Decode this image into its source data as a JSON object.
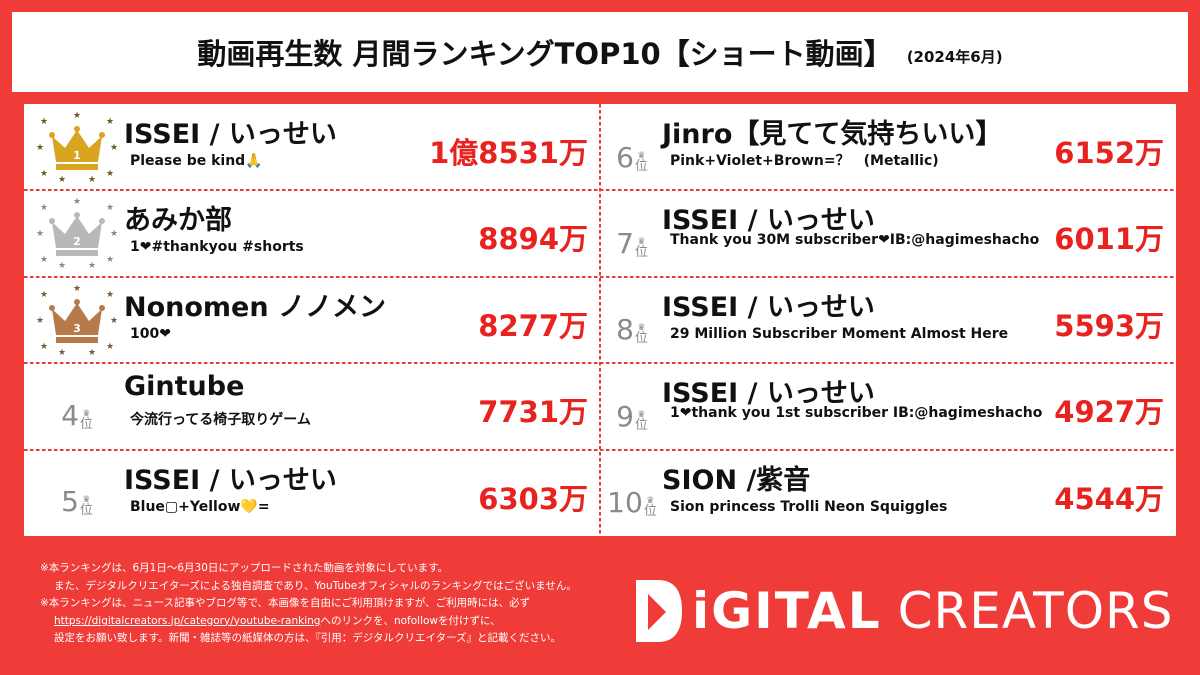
{
  "header": {
    "title": "動画再生数 月間ランキングTOP10【ショート動画】",
    "period": "(2024年6月)"
  },
  "rank_suffix": "位",
  "rankings_left": [
    {
      "rank": "1",
      "channel": "ISSEI / いっせい",
      "video": "Please be kind🙏",
      "views": "1億8531万",
      "crown": "gold"
    },
    {
      "rank": "2",
      "channel": "あみか部",
      "video": "1❤#thankyou #shorts",
      "views": "8894万",
      "crown": "silver"
    },
    {
      "rank": "3",
      "channel": "Nonomen ノノメン",
      "video": "100❤",
      "views": "8277万",
      "crown": "bronze"
    },
    {
      "rank": "4",
      "channel": "Gintube",
      "video": "今流行ってる椅子取りゲーム",
      "views": "7731万"
    },
    {
      "rank": "5",
      "channel": "ISSEI / いっせい",
      "video": "Blue▢+Yellow💛=",
      "views": "6303万"
    }
  ],
  "rankings_right": [
    {
      "rank": "6",
      "channel": "Jinro【見てて気持ちいい】",
      "video": "Pink+Violet+Brown=？　(Metallic)",
      "views": "6152万"
    },
    {
      "rank": "7",
      "channel": "ISSEI / いっせい",
      "video": "Thank you 30M subscriber❤IB:@hagimeshacho",
      "views": "6011万"
    },
    {
      "rank": "8",
      "channel": "ISSEI / いっせい",
      "video": "29 Million Subscriber Moment Almost Here",
      "views": "5593万"
    },
    {
      "rank": "9",
      "channel": "ISSEI / いっせい",
      "video": "1❤thank you 1st subscriber IB:@hagimeshacho",
      "views": "4927万"
    },
    {
      "rank": "10",
      "channel": "SION /紫音",
      "video": "Sion princess Trolli Neon Squiggles",
      "views": "4544万"
    }
  ],
  "footer": {
    "note1": "※本ランキングは、6月1日～6月30日にアップロードされた動画を対象にしています。",
    "note2": "また、デジタルクリエイターズによる独自調査であり、YouTubeオフィシャルのランキングではございません。",
    "note3": "※本ランキングは、ニュース記事やブログ等で、本画像を自由にご利用頂けますが、ご利用時には、必ず",
    "note4_link": "https://digitalcreators.jp/category/youtube-ranking",
    "note4_rest": "へのリンクを、nofollowを付けずに、",
    "note5": "設定をお願い致します。新聞・雑誌等の紙媒体の方は、『引用：デジタルクリエイターズ』と記載ください。"
  },
  "brand": {
    "digital": "iGITAL",
    "creators": "CREATORS",
    "logo_icon": "digital-creators-logo"
  },
  "colors": {
    "background": "#f03c38",
    "views_red": "#e8221e",
    "gold": "#d9a520",
    "silver": "#b8b8b8",
    "bronze": "#b77a4a"
  }
}
